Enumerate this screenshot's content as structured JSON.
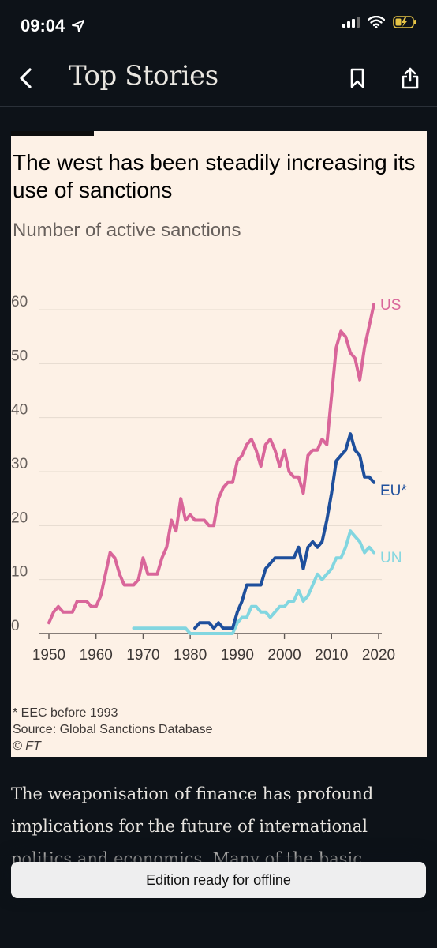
{
  "status": {
    "time": "09:04"
  },
  "nav": {
    "title": "Top Stories"
  },
  "chart_data": {
    "type": "line",
    "title": "The west has been steadily increasing its use of sanctions",
    "subtitle": "Number of active sanctions",
    "x_ticks": [
      "1950",
      "1960",
      "1970",
      "1980",
      "1990",
      "2000",
      "2010",
      "2020"
    ],
    "y_ticks": [
      "0",
      "10",
      "20",
      "30",
      "40",
      "50",
      "60"
    ],
    "xlim": [
      1950,
      2020
    ],
    "ylim": [
      0,
      60
    ],
    "grid": true,
    "series": [
      {
        "name": "US",
        "color": "#d9669a",
        "x": [
          1950,
          1951,
          1952,
          1953,
          1954,
          1955,
          1956,
          1957,
          1958,
          1959,
          1960,
          1961,
          1962,
          1963,
          1964,
          1965,
          1966,
          1967,
          1968,
          1969,
          1970,
          1971,
          1972,
          1973,
          1974,
          1975,
          1976,
          1977,
          1978,
          1979,
          1980,
          1981,
          1982,
          1983,
          1984,
          1985,
          1986,
          1987,
          1988,
          1989,
          1990,
          1991,
          1992,
          1993,
          1994,
          1995,
          1996,
          1997,
          1998,
          1999,
          2000,
          2001,
          2002,
          2003,
          2004,
          2005,
          2006,
          2007,
          2008,
          2009,
          2010,
          2011,
          2012,
          2013,
          2014,
          2015,
          2016,
          2017,
          2018,
          2019
        ],
        "values": [
          2,
          4,
          5,
          4,
          4,
          4,
          6,
          6,
          6,
          5,
          5,
          7,
          11,
          15,
          14,
          11,
          9,
          9,
          9,
          10,
          14,
          11,
          11,
          11,
          14,
          16,
          21,
          19,
          25,
          21,
          22,
          21,
          21,
          21,
          20,
          20,
          25,
          27,
          28,
          28,
          32,
          33,
          35,
          36,
          34,
          31,
          35,
          36,
          34,
          31,
          34,
          30,
          29,
          29,
          26,
          33,
          34,
          34,
          36,
          35,
          44,
          53,
          56,
          55,
          52,
          51,
          47,
          53,
          57,
          61
        ]
      },
      {
        "name": "EU*",
        "color": "#1e4f9c",
        "x": [
          1981,
          1982,
          1983,
          1984,
          1985,
          1986,
          1987,
          1988,
          1989,
          1990,
          1991,
          1992,
          1993,
          1994,
          1995,
          1996,
          1997,
          1998,
          1999,
          2000,
          2001,
          2002,
          2003,
          2004,
          2005,
          2006,
          2007,
          2008,
          2009,
          2010,
          2011,
          2012,
          2013,
          2014,
          2015,
          2016,
          2017,
          2018,
          2019
        ],
        "values": [
          1,
          2,
          2,
          2,
          1,
          2,
          1,
          1,
          1,
          4,
          6,
          9,
          9,
          9,
          9,
          12,
          13,
          14,
          14,
          14,
          14,
          14,
          16,
          12,
          16,
          17,
          16,
          17,
          21,
          26,
          32,
          33,
          34,
          37,
          34,
          33,
          29,
          29,
          28
        ]
      },
      {
        "name": "UN",
        "color": "#82d6e0",
        "x": [
          1968,
          1975,
          1979,
          1980,
          1981,
          1982,
          1983,
          1984,
          1985,
          1986,
          1987,
          1988,
          1989,
          1990,
          1991,
          1992,
          1993,
          1994,
          1995,
          1996,
          1997,
          1998,
          1999,
          2000,
          2001,
          2002,
          2003,
          2004,
          2005,
          2006,
          2007,
          2008,
          2009,
          2010,
          2011,
          2012,
          2013,
          2014,
          2015,
          2016,
          2017,
          2018,
          2019
        ],
        "values": [
          1,
          1,
          1,
          0,
          0,
          0,
          0,
          0,
          0,
          0,
          0,
          0,
          0,
          2,
          3,
          3,
          5,
          5,
          4,
          4,
          3,
          4,
          5,
          5,
          6,
          6,
          8,
          6,
          7,
          9,
          11,
          10,
          11,
          12,
          14,
          14,
          16,
          19,
          18,
          17,
          15,
          16,
          15
        ]
      }
    ],
    "footnotes": [
      "* EEC before 1993",
      "Source: Global Sanctions Database",
      "© FT"
    ]
  },
  "article": {
    "text": "The weaponisation of finance has profound implications for the future of international politics and economics. Many of the basic"
  },
  "toast": {
    "label": "Edition ready for offline"
  }
}
